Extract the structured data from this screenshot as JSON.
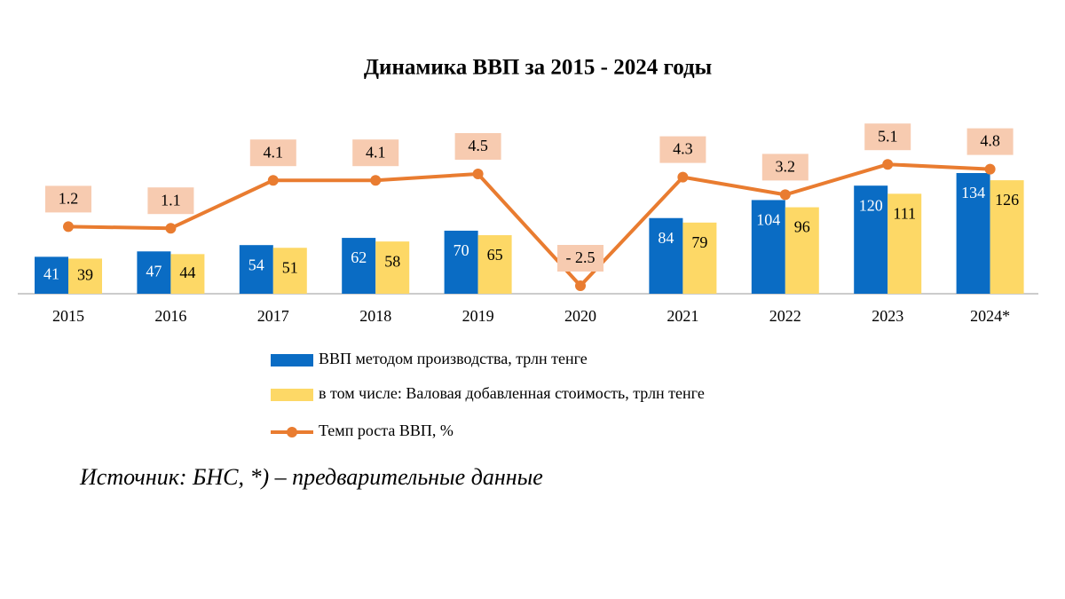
{
  "chart_data": {
    "type": "bar",
    "title": "Динамика ВВП за 2015 - 2024 годы",
    "categories": [
      "2015",
      "2016",
      "2017",
      "2018",
      "2019",
      "2020",
      "2021",
      "2022",
      "2023",
      "2024*"
    ],
    "series": [
      {
        "name": "ВВП методом производства, трлн тенге",
        "type": "bar",
        "color": "#0a6cc4",
        "label_color": "#ffffff",
        "values": [
          41,
          47,
          54,
          62,
          70,
          0,
          84,
          104,
          120,
          134
        ],
        "value_labels": [
          "41",
          "47",
          "54",
          "62",
          "70",
          null,
          "84",
          "104",
          "120",
          "134"
        ]
      },
      {
        "name": "в том числе: Валовая добавленная стоимость, трлн тенге",
        "type": "bar",
        "color": "#fdd866",
        "label_color": "#000000",
        "values": [
          39,
          44,
          51,
          58,
          65,
          0,
          79,
          96,
          111,
          126
        ],
        "value_labels": [
          "39",
          "44",
          "51",
          "58",
          "65",
          null,
          "79",
          "96",
          "111",
          "126"
        ]
      },
      {
        "name": "Темп роста ВВП, %",
        "type": "line",
        "axis": "y2",
        "color": "#e97c30",
        "label_box": "#f7cbb0",
        "values": [
          1.2,
          1.1,
          4.1,
          4.1,
          4.5,
          -2.5,
          4.3,
          3.2,
          5.1,
          4.8
        ],
        "value_labels": [
          "1.2",
          "1.1",
          "4.1",
          "4.1",
          "4.5",
          "- 2.5",
          "4.3",
          "3.2",
          "5.1",
          "4.8"
        ]
      }
    ],
    "source": "Источник: БНС, *) – предварительные данные"
  }
}
